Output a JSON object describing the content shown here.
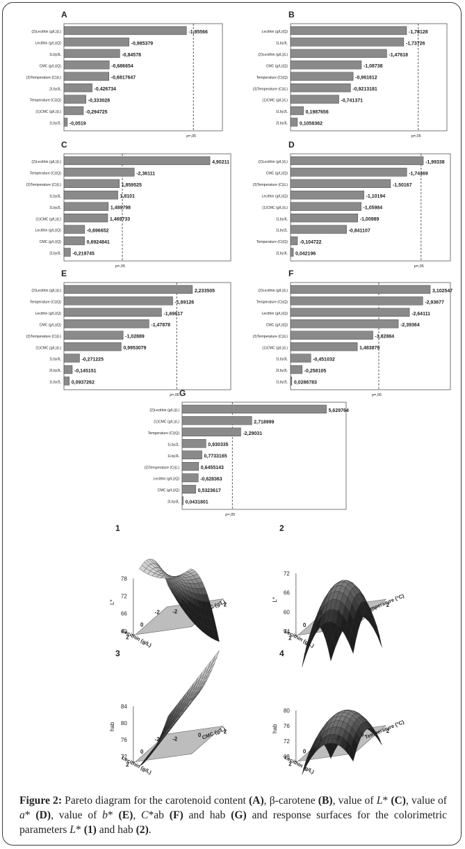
{
  "chart_data": [
    {
      "type": "bar",
      "panel": "A",
      "threshold_label": "p=,05",
      "categories": [
        "(2)Lecithin (g/L)(L)",
        "Lecithin (g/L)(Q)",
        "1Lby3L",
        "CMC (g/L)(Q)",
        "(3)Temperature (C)(L)",
        "2Lby3L",
        "Temperature (C)(Q)",
        "(1)CMC (g/L)(L)",
        "1Lby2L"
      ],
      "values": [
        -1.85566,
        -0.985379,
        -0.84578,
        -0.686654,
        -0.6817647,
        -0.426734,
        -0.333028,
        -0.294725,
        -0.0519
      ],
      "labels": [
        "-1,85566",
        "-0,985379",
        "-0,84578",
        "-0,686654",
        "-0,6817647",
        "-0,426734",
        "-0,333028",
        "-0,294725",
        "-0,0519"
      ]
    },
    {
      "type": "bar",
      "panel": "B",
      "threshold_label": "p=,05",
      "categories": [
        "Lecithin (g/L)(Q)",
        "1Lby3L",
        "(2)Lecithin (g/L)(L)",
        "CMC (g/L)(Q)",
        "Temperature (C)(Q)",
        "(3)Temperature (C)(L)",
        "(1)CMC (g/L)(L)",
        "1Lby2L",
        "2Lby3L"
      ],
      "values": [
        -1.78128,
        -1.73726,
        -1.47618,
        -1.08738,
        -0.961612,
        -0.9213181,
        -0.741371,
        0.1987656,
        0.1058362
      ],
      "labels": [
        "-1,78128",
        "-1,73726",
        "-1,47618",
        "-1,08738",
        "-0,961612",
        "-0,9213181",
        "-0,741371",
        "0,1987656",
        "0,1058362"
      ]
    },
    {
      "type": "bar",
      "panel": "C",
      "threshold_label": "p=,05",
      "categories": [
        "(2)Lecithin (g/L)(L)",
        "Temperature (C)(Q)",
        "(3)Temperature (C)(L)",
        "1Lby3L",
        "1Lby2L",
        "(1)CMC (g/L)(L)",
        "Lecithin (g/L)(Q)",
        "CMC (g/L)(Q)",
        "2Lby3L"
      ],
      "values": [
        4.90211,
        -2.36111,
        1.859525,
        1.8101,
        1.489798,
        1.469733,
        -0.696652,
        0.6924841,
        -0.219745
      ],
      "labels": [
        "4,90211",
        "-2,36111",
        "1,859525",
        "1,8101",
        "1,489798",
        "1,469733",
        "-0,696652",
        "0,6924841",
        "-0,219745"
      ]
    },
    {
      "type": "bar",
      "panel": "D",
      "threshold_label": "p=,05",
      "categories": [
        "(2)Lecithin (g/L)(L)",
        "CMC (g/L)(Q)",
        "(3)Temperature (C)(L)",
        "Lecithin (g/L)(Q)",
        "(1)CMC (g/L)(L)",
        "1Lby3L",
        "1Lby2L",
        "Temperature (C)(Q)",
        "2Lby3L"
      ],
      "values": [
        -1.99338,
        -1.74469,
        -1.50167,
        -1.10194,
        -1.05984,
        -1.00989,
        -0.841107,
        -0.104722,
        0.042196
      ],
      "labels": [
        "-1,99338",
        "-1,74469",
        "-1,50167",
        "-1,10194",
        "-1,05984",
        "-1,00989",
        "-0,841107",
        "-0,104722",
        "0,042196"
      ]
    },
    {
      "type": "bar",
      "panel": "E",
      "threshold_label": "p=,05",
      "categories": [
        "(2)Lecithin (g/L)(L)",
        "Temperature (C)(Q)",
        "Lecithin (g/L)(Q)",
        "CMC (g/L)(Q)",
        "(3)Temperature (C)(L)",
        "(1)CMC (g/L)(L)",
        "1Lby3L",
        "2Lby3L",
        "1Lby2L"
      ],
      "values": [
        2.233505,
        -1.89126,
        -1.69617,
        -1.47878,
        -1.02889,
        0.9953079,
        -0.271225,
        -0.145151,
        0.0937262
      ],
      "labels": [
        "2,233505",
        "-1,89126",
        "-1,69617",
        "-1,47878",
        "-1,02889",
        "0,9953079",
        "-0,271225",
        "-0,145151",
        "0,0937262"
      ]
    },
    {
      "type": "bar",
      "panel": "F",
      "threshold_label": "p=,05",
      "categories": [
        "(2)Lecithin (g/L)(L)",
        "Temperature (C)(Q)",
        "Lecithin (g/L)(Q)",
        "CMC (g/L)(Q)",
        "(3)Temperature (C)(L)",
        "(1)CMC (g/L)(L)",
        "1Lby3L",
        "2Lby3L",
        "1Lby2L"
      ],
      "values": [
        3.102547,
        -2.93677,
        -2.64111,
        -2.39364,
        -1.82884,
        1.483879,
        -0.451032,
        -0.258105,
        0.0286783
      ],
      "labels": [
        "3,102547",
        "-2,93677",
        "-2,64111",
        "-2,39364",
        "-1,82884",
        "1,483879",
        "-0,451032",
        "-0,258105",
        "0,0286783"
      ]
    },
    {
      "type": "bar",
      "panel": "G",
      "threshold_label": "p=,05",
      "categories": [
        "(2)Lecithin (g/L)(L)",
        "(1)CMC (g/L)(L)",
        "Temperature (C)(Q)",
        "1Lby2L",
        "1Lby3L",
        "(3)Temperature (C)(L)",
        "Lecithin (g/L)(Q)",
        "CMC (g/L)(Q)",
        "2Lby3L"
      ],
      "values": [
        5.629764,
        2.718999,
        -2.29031,
        0.930335,
        0.7733165,
        0.6455143,
        -0.628363,
        0.5323617,
        0.0431801
      ],
      "labels": [
        "5,629764",
        "2,718999",
        "-2,29031",
        "0,930335",
        "0,7733165",
        "0,6455143",
        "-0,628363",
        "0,5323617",
        "0,0431801"
      ]
    },
    {
      "type": "surface",
      "panel": "1",
      "z_label": "L*",
      "z_ticks": [
        "78",
        "72",
        "66",
        "60"
      ],
      "x_label": "Lecithin (g/L)",
      "x_ticks": [
        "2",
        "0",
        "-2"
      ],
      "y_label": "CMC (g/L)",
      "y_ticks": [
        "2",
        "0",
        "-2"
      ]
    },
    {
      "type": "surface",
      "panel": "2",
      "z_label": "L*",
      "z_ticks": [
        "72",
        "66",
        "60",
        "54"
      ],
      "x_label": "Lecithin (g/L)",
      "x_ticks": [
        "2",
        "0",
        "-2"
      ],
      "y_label": "Temperature (°C)",
      "y_ticks": [
        "2",
        "0",
        "-2"
      ]
    },
    {
      "type": "surface",
      "panel": "3",
      "z_label": "hab",
      "z_ticks": [
        "84",
        "80",
        "76",
        "72"
      ],
      "x_label": "Lecithin (g/L)",
      "x_ticks": [
        "2",
        "0",
        "-2"
      ],
      "y_label": "CMC (g/L)",
      "y_ticks": [
        "2",
        "0",
        "-2"
      ]
    },
    {
      "type": "surface",
      "panel": "4",
      "z_label": "hab",
      "z_ticks": [
        "80",
        "76",
        "72",
        "68"
      ],
      "x_label": "Lecithin (g/L)",
      "x_ticks": [
        "2",
        "0",
        "-2"
      ],
      "y_label": "Temperature (°C)",
      "y_ticks": [
        "2",
        "0",
        "-2"
      ]
    }
  ],
  "caption": {
    "label": "Figure 2:",
    "segments": [
      {
        "t": " Pareto diagram for the carotenoid content ",
        "s": ""
      },
      {
        "t": "(A)",
        "s": "b"
      },
      {
        "t": ", β-carotene ",
        "s": ""
      },
      {
        "t": "(B)",
        "s": "b"
      },
      {
        "t": ", value of ",
        "s": ""
      },
      {
        "t": "L",
        "s": "i"
      },
      {
        "t": "* ",
        "s": ""
      },
      {
        "t": "(C)",
        "s": "b"
      },
      {
        "t": ", value of ",
        "s": ""
      },
      {
        "t": "a",
        "s": "i"
      },
      {
        "t": "* ",
        "s": ""
      },
      {
        "t": "(D)",
        "s": "b"
      },
      {
        "t": ", value of ",
        "s": ""
      },
      {
        "t": "b",
        "s": "i"
      },
      {
        "t": "* ",
        "s": ""
      },
      {
        "t": "(E)",
        "s": "b"
      },
      {
        "t": ", ",
        "s": ""
      },
      {
        "t": "C",
        "s": "i"
      },
      {
        "t": "*ab ",
        "s": ""
      },
      {
        "t": "(F)",
        "s": "b"
      },
      {
        "t": " and hab ",
        "s": ""
      },
      {
        "t": "(G)",
        "s": "b"
      },
      {
        "t": " and response surfaces for the colorimetric parameters ",
        "s": ""
      },
      {
        "t": "L",
        "s": "i"
      },
      {
        "t": "* ",
        "s": ""
      },
      {
        "t": "(1)",
        "s": "b"
      },
      {
        "t": " and hab ",
        "s": ""
      },
      {
        "t": "(2)",
        "s": "b"
      },
      {
        "t": ".",
        "s": ""
      }
    ]
  },
  "colors": {
    "bar": "#8a8a8a",
    "bar_edge": "#444444",
    "text": "#222222",
    "surface_light": "#d8d8d8",
    "surface_dark": "#1e1e1e"
  }
}
